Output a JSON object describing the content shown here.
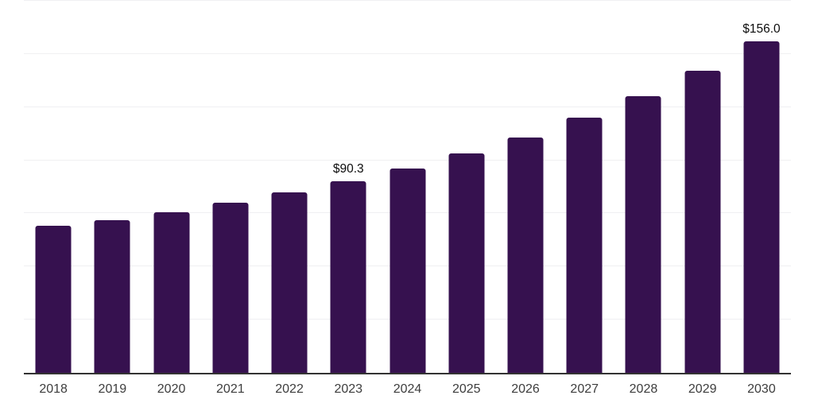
{
  "chart_data": {
    "type": "bar",
    "title": "",
    "xlabel": "",
    "ylabel": "",
    "categories": [
      "2018",
      "2019",
      "2020",
      "2021",
      "2022",
      "2023",
      "2024",
      "2025",
      "2026",
      "2027",
      "2028",
      "2029",
      "2030"
    ],
    "values": [
      69.0,
      71.7,
      75.4,
      80.0,
      84.8,
      90.3,
      96.2,
      103.2,
      110.7,
      119.9,
      130.3,
      142.1,
      156.0
    ],
    "data_labels": {
      "2023": "$90.3",
      "2030": "$156.0"
    },
    "ylim": [
      0,
      175
    ],
    "gridline_interval": 25,
    "grid": true,
    "legend": false,
    "colors": {
      "bar": "#36114f",
      "gridline": "#f0f0f2",
      "axis_line": "#333333",
      "tick_label": "#3d3d3d",
      "data_label": "#0d0d0d",
      "background": "#ffffff"
    }
  }
}
